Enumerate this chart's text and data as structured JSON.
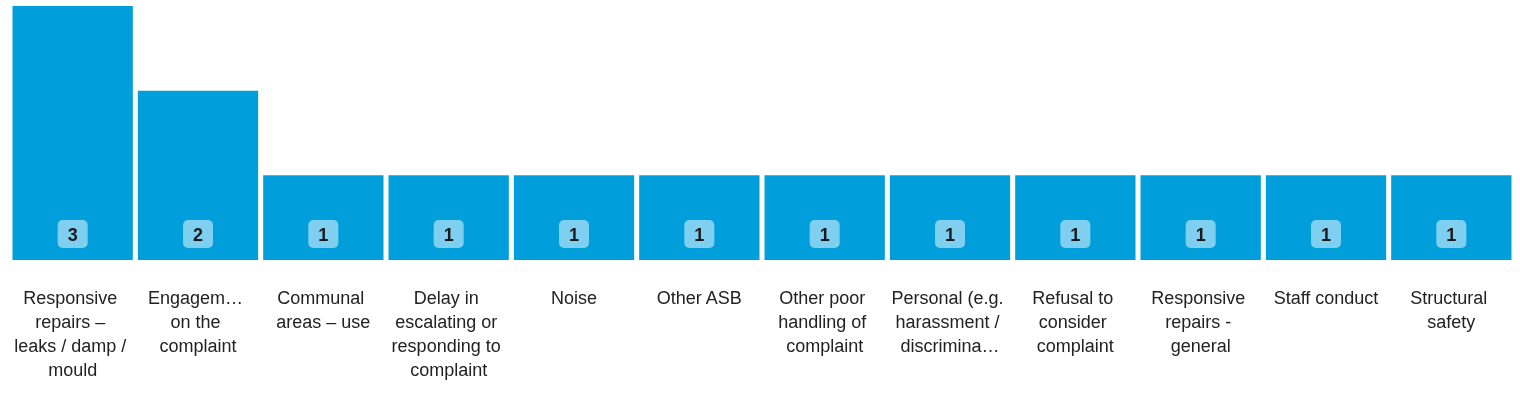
{
  "chart_data": {
    "type": "bar",
    "categories": [
      "Responsive repairs – leaks / damp / mould",
      "Engagem… on the complaint",
      "Communal areas – use",
      "Delay in escalating or responding to complaint",
      "Noise",
      "Other ASB",
      "Other poor handling of complaint",
      "Personal (e.g. harassment / discrimina…",
      "Refusal to consider complaint",
      "Responsive repairs - general",
      "Staff conduct",
      "Structural safety"
    ],
    "values": [
      3,
      2,
      1,
      1,
      1,
      1,
      1,
      1,
      1,
      1,
      1,
      1
    ],
    "color": "#009fdb",
    "data_labels": true
  }
}
